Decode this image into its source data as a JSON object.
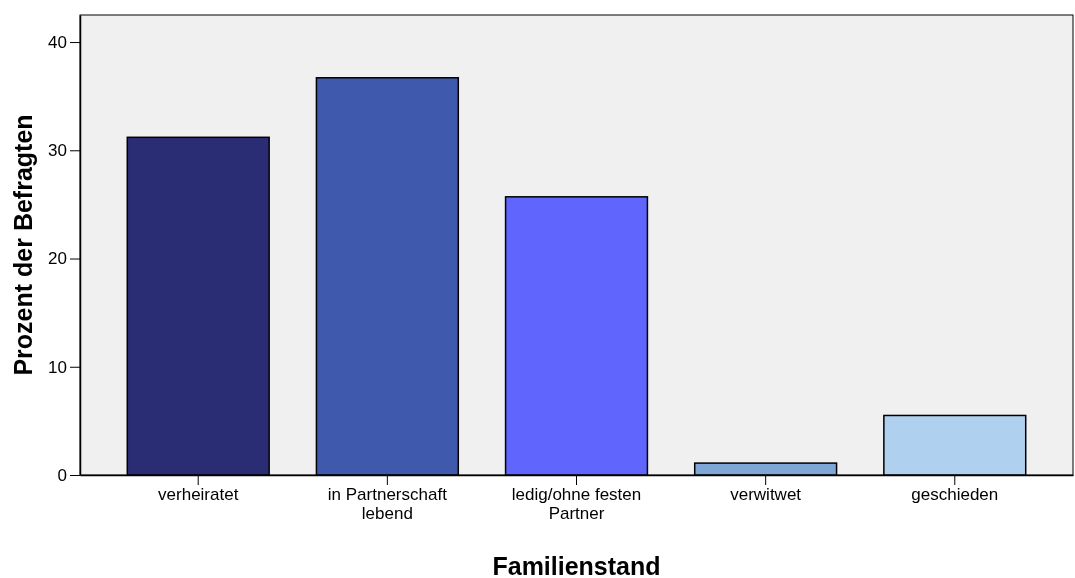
{
  "chart_data": {
    "type": "bar",
    "xlabel": "Familienstand",
    "ylabel": "Prozent der Befragten",
    "categories": [
      "verheiratet",
      "in Partnerschaft lebend",
      "ledig/ohne festen Partner",
      "verwitwet",
      "geschieden"
    ],
    "values": [
      31.2,
      36.7,
      25.7,
      1.1,
      5.5
    ],
    "colors": [
      "#2a2d73",
      "#3f5aad",
      "#6065fe",
      "#7ea6d6",
      "#afd0ee"
    ],
    "ylim": [
      0,
      42.5
    ],
    "yticks": [
      0,
      10,
      20,
      30,
      40
    ],
    "grid": false
  }
}
